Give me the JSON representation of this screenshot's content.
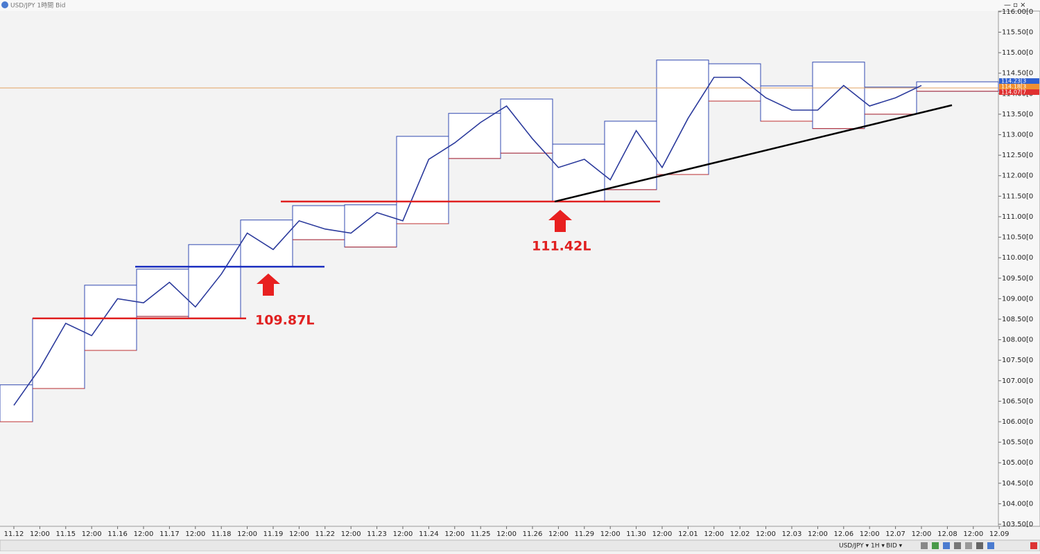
{
  "header": {
    "title": "USD/JPY 1時間 Bid"
  },
  "toolbar": {
    "symbol": "USD/JPY ▾",
    "period": "1H ▾",
    "side": "BID ▾"
  },
  "chart_data": {
    "type": "line",
    "categories": [
      "11.12",
      "12:00",
      "11.15",
      "12:00",
      "11.16",
      "12:00",
      "11.17",
      "12:00",
      "11.18",
      "12:00",
      "11.19",
      "12:00",
      "11.22",
      "12:00",
      "11.23",
      "12:00",
      "11.24",
      "12:00",
      "11.25",
      "12:00",
      "11.26",
      "12:00",
      "11.29",
      "12:00",
      "11.30",
      "12:00",
      "12.01",
      "12:00",
      "12.02",
      "12:00",
      "12.03",
      "12:00",
      "12.06",
      "12:00",
      "12.07",
      "12:00",
      "12.08",
      "12:00",
      "12.09"
    ],
    "values": [
      106.4,
      107.3,
      108.4,
      108.1,
      109.0,
      108.9,
      109.4,
      108.8,
      109.6,
      110.6,
      110.2,
      110.9,
      110.7,
      110.6,
      111.1,
      110.9,
      112.4,
      112.8,
      113.3,
      113.7,
      112.9,
      112.2,
      112.4,
      111.9,
      113.1,
      112.2,
      113.4,
      114.4,
      114.4,
      113.9,
      113.6,
      113.6,
      114.2,
      113.7,
      113.9,
      114.2,
      null,
      null,
      null
    ],
    "color": "#2b3a9c",
    "ranges": [
      {
        "high": 106.9,
        "low": 106.0
      },
      {
        "high": 108.52,
        "low": 106.81
      },
      {
        "high": 109.33,
        "low": 107.74
      },
      {
        "high": 109.72,
        "low": 108.57
      },
      {
        "high": 110.32,
        "low": 108.53
      },
      {
        "high": 110.92,
        "low": 109.78
      },
      {
        "high": 111.27,
        "low": 110.44
      },
      {
        "high": 111.29,
        "low": 110.26
      },
      {
        "high": 112.96,
        "low": 110.83
      },
      {
        "high": 113.52,
        "low": 112.42
      },
      {
        "high": 113.87,
        "low": 112.55
      },
      {
        "high": 112.77,
        "low": 111.37
      },
      {
        "high": 113.33,
        "low": 111.66
      },
      {
        "high": 114.82,
        "low": 112.03
      },
      {
        "high": 114.73,
        "low": 113.82
      },
      {
        "high": 114.19,
        "low": 113.33
      },
      {
        "high": 114.77,
        "low": 113.15
      },
      {
        "high": 114.16,
        "low": 113.5
      },
      {
        "high": 114.29,
        "low": 114.06
      }
    ],
    "levels": [
      {
        "value": 108.52,
        "color": "#e02020"
      },
      {
        "value": 109.78,
        "color": "#1a2ec0"
      },
      {
        "value": 111.37,
        "color": "#e02020"
      }
    ],
    "trendline": {
      "from": 111.37,
      "to": 113.72,
      "color": "#000000"
    },
    "current_price": 114.14,
    "annotations": [
      "109.87L",
      "111.42L"
    ],
    "price_labels": [
      "114.23[3",
      "114.18[3",
      "114.07[7"
    ],
    "ylim": [
      103.45,
      116.15
    ],
    "yticks": [
      {
        "value": 103.5,
        "label": "103.50[0"
      },
      {
        "value": 104,
        "label": "104.00[0"
      },
      {
        "value": 104.5,
        "label": "104.50[0"
      },
      {
        "value": 105,
        "label": "105.00[0"
      },
      {
        "value": 105.5,
        "label": "105.50[0"
      },
      {
        "value": 106,
        "label": "106.00[0"
      },
      {
        "value": 106.5,
        "label": "106.50[0"
      },
      {
        "value": 107,
        "label": "107.00[0"
      },
      {
        "value": 107.5,
        "label": "107.50[0"
      },
      {
        "value": 108,
        "label": "108.00[0"
      },
      {
        "value": 108.5,
        "label": "108.50[0"
      },
      {
        "value": 109,
        "label": "109.00[0"
      },
      {
        "value": 109.5,
        "label": "109.50[0"
      },
      {
        "value": 110,
        "label": "110.00[0"
      },
      {
        "value": 110.5,
        "label": "110.50[0"
      },
      {
        "value": 111,
        "label": "111.00[0"
      },
      {
        "value": 111.5,
        "label": "111.50[0"
      },
      {
        "value": 112,
        "label": "112.00[0"
      },
      {
        "value": 112.5,
        "label": "112.50[0"
      },
      {
        "value": 113,
        "label": "113.00[0"
      },
      {
        "value": 113.5,
        "label": "113.50[0"
      },
      {
        "value": 114,
        "label": "114.00[0"
      },
      {
        "value": 114.5,
        "label": "114.50[0"
      },
      {
        "value": 115,
        "label": "115.00[0"
      },
      {
        "value": 115.5,
        "label": "115.50[0"
      },
      {
        "value": 116,
        "label": "116.00[0"
      }
    ]
  }
}
